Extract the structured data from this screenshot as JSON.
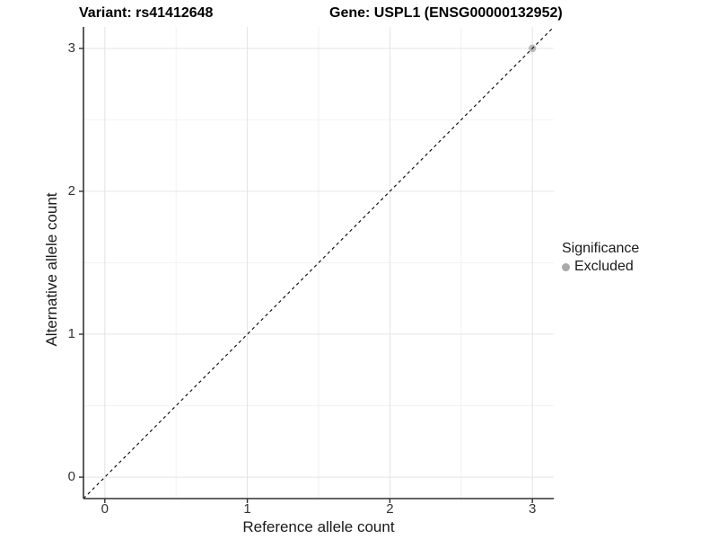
{
  "header": {
    "variant_title": "Variant: rs41412648",
    "gene_title": "Gene: USPL1 (ENSG00000132952)"
  },
  "chart_data": {
    "type": "scatter",
    "title": "Variant: rs41412648 — Gene: USPL1 (ENSG00000132952)",
    "xlabel": "Reference allele count",
    "ylabel": "Alternative allele count",
    "xlim": [
      -0.15,
      3.15
    ],
    "ylim": [
      -0.15,
      3.15
    ],
    "x_ticks": [
      0,
      1,
      2,
      3
    ],
    "y_ticks": [
      0,
      1,
      2,
      3
    ],
    "x_minor_ticks": [
      0.5,
      1.5,
      2.5
    ],
    "y_minor_ticks": [
      0.5,
      1.5,
      2.5
    ],
    "grid": "major and minor, light grey on white",
    "identity_line": {
      "type": "abline y=x",
      "style": "dashed",
      "color": "#000000"
    },
    "series": [
      {
        "name": "Excluded",
        "color": "#a9a9a9",
        "opacity": 0.8,
        "points": [
          {
            "x": 3,
            "y": 3
          }
        ]
      }
    ],
    "legend": {
      "position": "right",
      "title": "Significance",
      "items": [
        {
          "label": "Excluded",
          "color": "#a9a9a9"
        }
      ]
    },
    "colors": {
      "background": "#ffffff",
      "grid_major": "#e4e4e4",
      "grid_minor": "#f2f2f2",
      "axis_line": "#333333",
      "tick_mark": "#333333"
    }
  }
}
